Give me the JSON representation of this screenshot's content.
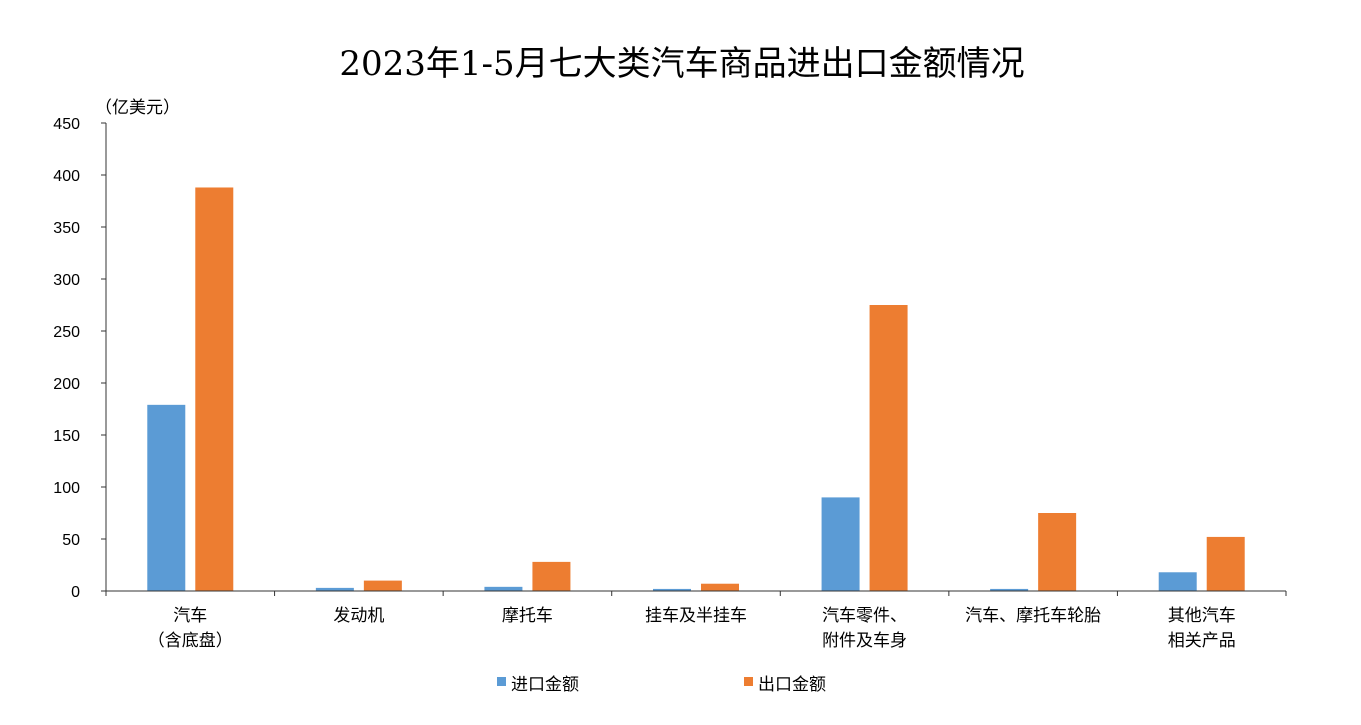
{
  "chart_data": {
    "type": "bar",
    "title": "2023年1-5月七大类汽车商品进出口金额情况",
    "unit_label": "（亿美元）",
    "ylim": [
      0,
      450
    ],
    "yticks": [
      "0",
      "50",
      "100",
      "150",
      "200",
      "250",
      "300",
      "350",
      "400",
      "450"
    ],
    "categories": [
      [
        "汽车",
        "（含底盘）"
      ],
      [
        "发动机"
      ],
      [
        "摩托车"
      ],
      [
        "挂车及半挂车"
      ],
      [
        "汽车零件、",
        "附件及车身"
      ],
      [
        "汽车、摩托车轮胎"
      ],
      [
        "其他汽车",
        "相关产品"
      ]
    ],
    "series": [
      {
        "name": "进口金额",
        "color": "#5b9bd5",
        "values": [
          179,
          3,
          4,
          2,
          90,
          2,
          18
        ]
      },
      {
        "name": "出口金额",
        "color": "#ed7d31",
        "values": [
          388,
          10,
          28,
          7,
          275,
          75,
          52
        ]
      }
    ],
    "grid": false,
    "legend_position": "bottom"
  }
}
